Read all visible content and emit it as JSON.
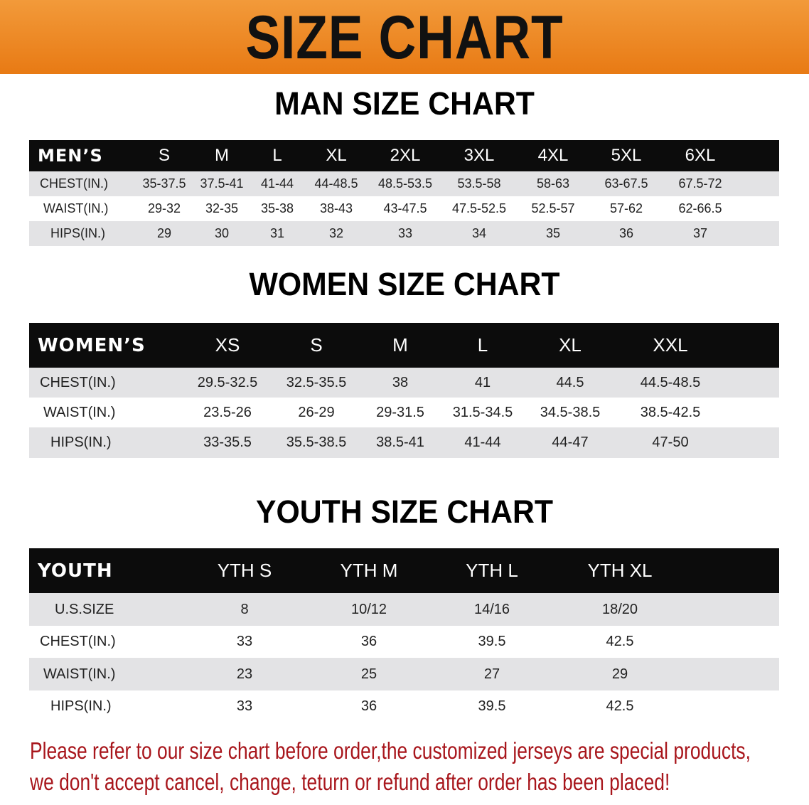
{
  "banner": {
    "title": "SIZE CHART",
    "color": "#ec841e"
  },
  "men": {
    "title": "MAN SIZE CHART",
    "header": [
      "MEN’S",
      "S",
      "M",
      "L",
      "XL",
      "2XL",
      "3XL",
      "4XL",
      "5XL",
      "6XL"
    ],
    "rows": [
      [
        "CHEST(IN.)",
        "35-37.5",
        "37.5-41",
        "41-44",
        "44-48.5",
        "48.5-53.5",
        "53.5-58",
        "58-63",
        "63-67.5",
        "67.5-72"
      ],
      [
        "WAIST(IN.)",
        "29-32",
        "32-35",
        "35-38",
        "38-43",
        "43-47.5",
        "47.5-52.5",
        "52.5-57",
        "57-62",
        "62-66.5"
      ],
      [
        "HIPS(IN.)",
        "29",
        "30",
        "31",
        "32",
        "33",
        "34",
        "35",
        "36",
        "37"
      ]
    ]
  },
  "women": {
    "title": "WOMEN SIZE CHART",
    "header": [
      "WOMEN’S",
      "XS",
      "S",
      "M",
      "L",
      "XL",
      "XXL"
    ],
    "rows": [
      [
        "CHEST(IN.)",
        "29.5-32.5",
        "32.5-35.5",
        "38",
        "41",
        "44.5",
        "44.5-48.5"
      ],
      [
        "WAIST(IN.)",
        "23.5-26",
        "26-29",
        "29-31.5",
        "31.5-34.5",
        "34.5-38.5",
        "38.5-42.5"
      ],
      [
        "HIPS(IN.)",
        "33-35.5",
        "35.5-38.5",
        "38.5-41",
        "41-44",
        "44-47",
        "47-50"
      ]
    ]
  },
  "youth": {
    "title": "YOUTH SIZE CHART",
    "header": [
      "YOUTH",
      "YTH S",
      "YTH M",
      "YTH L",
      "YTH XL"
    ],
    "rows": [
      [
        "U.S.SIZE",
        "8",
        "10/12",
        "14/16",
        "18/20"
      ],
      [
        "CHEST(IN.)",
        "33",
        "36",
        "39.5",
        "42.5"
      ],
      [
        "WAIST(IN.)",
        "23",
        "25",
        "27",
        "29"
      ],
      [
        "HIPS(IN.)",
        "33",
        "36",
        "39.5",
        "42.5"
      ]
    ]
  },
  "notice": {
    "line1": "Please refer to our size chart before order,the customized jerseys are special products,",
    "line2": "we don't accept cancel, change, teturn or refund after order has been placed!",
    "color": "#a8161c"
  }
}
